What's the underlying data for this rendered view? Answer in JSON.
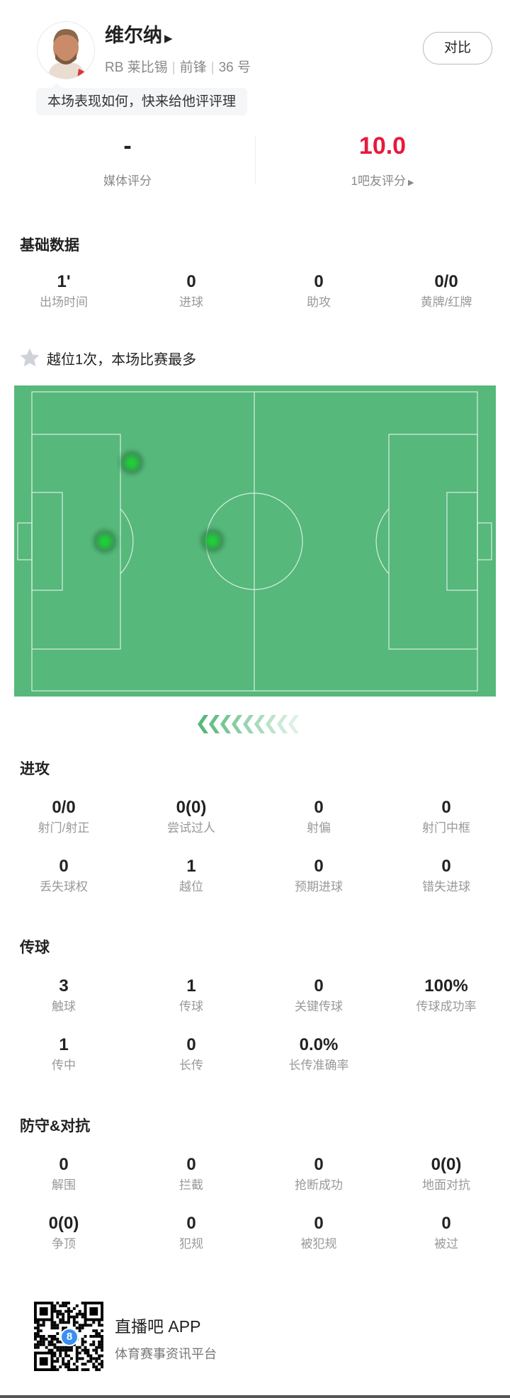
{
  "player": {
    "name": "维尔纳",
    "team": "RB 莱比锡",
    "position": "前锋",
    "number": "36 号",
    "compare_label": "对比",
    "prompt": "本场表现如何，快来给他评评理"
  },
  "ratings": {
    "media_value": "-",
    "media_label": "媒体评分",
    "fan_value": "10.0",
    "fan_label": "1吧友评分",
    "fan_color": "#e8193c"
  },
  "basic": {
    "title": "基础数据",
    "items": [
      {
        "v": "1'",
        "l": "出场时间"
      },
      {
        "v": "0",
        "l": "进球"
      },
      {
        "v": "0",
        "l": "助攻"
      },
      {
        "v": "0/0",
        "l": "黄牌/红牌"
      }
    ]
  },
  "highlight": {
    "icon": "star-icon",
    "text": "越位1次，本场比赛最多"
  },
  "heatmap": {
    "pitch_color": "#56b87b",
    "spot_color": "#1fd23a"
  },
  "attack": {
    "title": "进攻",
    "items": [
      {
        "v": "0/0",
        "l": "射门/射正"
      },
      {
        "v": "0(0)",
        "l": "尝试过人"
      },
      {
        "v": "0",
        "l": "射偏"
      },
      {
        "v": "0",
        "l": "射门中框"
      },
      {
        "v": "0",
        "l": "丢失球权"
      },
      {
        "v": "1",
        "l": "越位"
      },
      {
        "v": "0",
        "l": "预期进球"
      },
      {
        "v": "0",
        "l": "错失进球"
      }
    ]
  },
  "passing": {
    "title": "传球",
    "items": [
      {
        "v": "3",
        "l": "触球"
      },
      {
        "v": "1",
        "l": "传球"
      },
      {
        "v": "0",
        "l": "关键传球"
      },
      {
        "v": "100%",
        "l": "传球成功率"
      },
      {
        "v": "1",
        "l": "传中"
      },
      {
        "v": "0",
        "l": "长传"
      },
      {
        "v": "0.0%",
        "l": "长传准确率"
      }
    ]
  },
  "defense": {
    "title": "防守&对抗",
    "items": [
      {
        "v": "0",
        "l": "解围"
      },
      {
        "v": "0",
        "l": "拦截"
      },
      {
        "v": "0",
        "l": "抢断成功"
      },
      {
        "v": "0(0)",
        "l": "地面对抗"
      },
      {
        "v": "0(0)",
        "l": "争顶"
      },
      {
        "v": "0",
        "l": "犯规"
      },
      {
        "v": "0",
        "l": "被犯规"
      },
      {
        "v": "0",
        "l": "被过"
      }
    ]
  },
  "footer": {
    "app_name": "直播吧 APP",
    "tagline": "体育赛事资讯平台",
    "qr_badge": "8"
  }
}
